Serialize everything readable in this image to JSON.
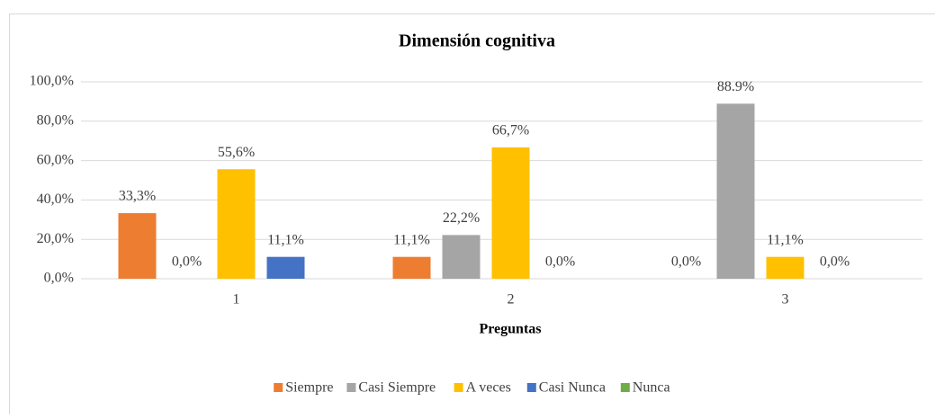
{
  "chart_data": {
    "type": "bar",
    "title": "Dimensión cognitiva",
    "x_label": "Preguntas",
    "categories": [
      "1",
      "2",
      "3"
    ],
    "series": [
      {
        "name": "Siempre",
        "color": "#ed7d31",
        "values": [
          33.3,
          11.1,
          0.0
        ],
        "value_labels": [
          "33,3%",
          "11,1%",
          "0,0%"
        ]
      },
      {
        "name": "Casi Siempre",
        "color": "#a5a5a5",
        "values": [
          0.0,
          22.2,
          88.9
        ],
        "value_labels": [
          "0,0%",
          "22,2%",
          "88.9%"
        ]
      },
      {
        "name": "A veces",
        "color": "#ffc000",
        "values": [
          55.6,
          66.7,
          11.1
        ],
        "value_labels": [
          "55,6%",
          "66,7%",
          "11,1%"
        ]
      },
      {
        "name": "Casi Nunca",
        "color": "#4472c4",
        "values": [
          11.1,
          0.0,
          0.0
        ],
        "value_labels": [
          "11,1%",
          "0,0%",
          "0,0%"
        ]
      },
      {
        "name": "Nunca",
        "color": "#70ad47",
        "values": [
          null,
          null,
          null
        ]
      }
    ],
    "ylim": [
      0,
      100
    ],
    "yticks": [
      {
        "value": 0,
        "label": "0,0%"
      },
      {
        "value": 20,
        "label": "20,0%"
      },
      {
        "value": 40,
        "label": "40,0%"
      },
      {
        "value": 60,
        "label": "60,0%"
      },
      {
        "value": 80,
        "label": "80,0%"
      },
      {
        "value": 100,
        "label": "100,0%"
      }
    ],
    "grid": true,
    "legend": "bottom"
  }
}
